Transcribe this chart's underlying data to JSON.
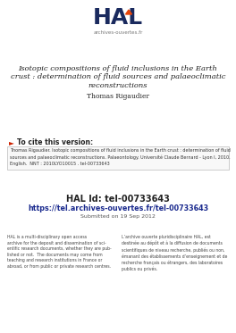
{
  "bg_color": "#ffffff",
  "title_line1": "Isotopic compositions of fluid inclusions in the Earth",
  "title_line2": "crust : determination of fluid sources and palaeoclimatic",
  "title_line3": "reconstructions",
  "author": "Thomas Rigaudier",
  "cite_header": "► To cite this version:",
  "cite_text": "Thomas Rigaudier. Isotopic compositions of fluid inclusions in the Earth crust : determination of fluid\nsources and palaeoclimatic reconstructions. Palaeontology. Université Claude Bernard - Lyon I, 2010.\nEnglish.  NNT : 2010LYO10015 . tel-00733643",
  "hal_id_label": "HAL Id: tel-00733643",
  "hal_url": "https://tel.archives-ouvertes.fr/tel-00733643",
  "submitted": "Submitted on 19 Sep 2012",
  "hal_text_left": "HAL is a multi-disciplinary open access\narchive for the deposit and dissemination of sci-\nentific research documents, whether they are pub-\nlished or not.  The documents may come from\nteaching and research institutions in France or\nabroad, or from public or private research centres.",
  "hal_text_right": "L’archive ouverte pluridisciplinaire HAL, est\ndestinée au dépôt et à la diffusion de documents\nscientifiques de niveau recherche, publiés ou non,\némanant des établissements d’enseignement et de\nrecherche français ou étrangers, des laboratoires\npublics ou privés.",
  "hal_logo_color": "#1a2a5e",
  "hal_triangle_color": "#e8450a",
  "cite_box_color": "#f8f8f8",
  "cite_border_color": "#aaaaaa",
  "url_color": "#1a2a8e",
  "text_color": "#222222",
  "body_color": "#444444"
}
